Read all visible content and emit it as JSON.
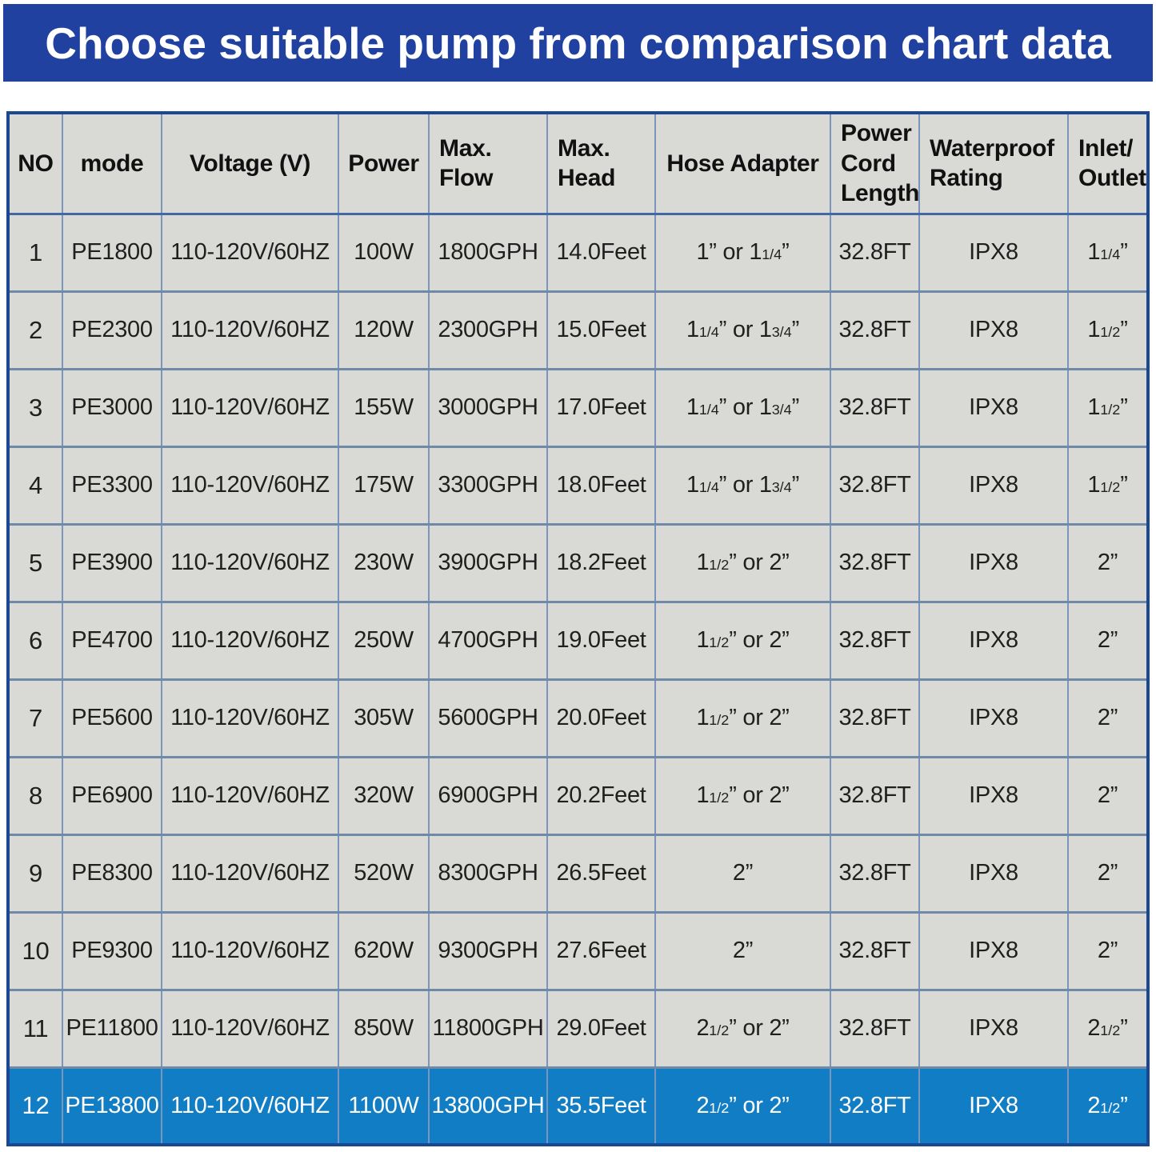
{
  "banner": {
    "title": "Choose suitable pump from comparison chart data",
    "bg_color": "#2041a0",
    "text_color": "#ffffff"
  },
  "table": {
    "columns": [
      {
        "key": "no",
        "label": "NO"
      },
      {
        "key": "mode",
        "label": "mode"
      },
      {
        "key": "voltage",
        "label": "Voltage (V)"
      },
      {
        "key": "power",
        "label": "Power"
      },
      {
        "key": "max_flow",
        "label": "Max.\nFlow"
      },
      {
        "key": "max_head",
        "label": "Max.\nHead"
      },
      {
        "key": "hose",
        "label": "Hose Adapter"
      },
      {
        "key": "cord",
        "label": "Power\nCord\nLength"
      },
      {
        "key": "waterproof",
        "label": "Waterproof\nRating"
      },
      {
        "key": "inlet",
        "label": "Inlet/\nOutlet"
      }
    ],
    "rows": [
      {
        "no": "1",
        "mode": "PE1800",
        "voltage": "110-120V/60HZ",
        "power": "100W",
        "max_flow": "1800GPH",
        "max_head": "14.0Feet",
        "hose": "1” or 1{1/4}”",
        "cord": "32.8FT",
        "waterproof": "IPX8",
        "inlet": "1{1/4}”",
        "highlighted": false
      },
      {
        "no": "2",
        "mode": "PE2300",
        "voltage": "110-120V/60HZ",
        "power": "120W",
        "max_flow": "2300GPH",
        "max_head": "15.0Feet",
        "hose": "1{1/4}” or 1{3/4}”",
        "cord": "32.8FT",
        "waterproof": "IPX8",
        "inlet": "1{1/2}”",
        "highlighted": false
      },
      {
        "no": "3",
        "mode": "PE3000",
        "voltage": "110-120V/60HZ",
        "power": "155W",
        "max_flow": "3000GPH",
        "max_head": "17.0Feet",
        "hose": "1{1/4}” or 1{3/4}”",
        "cord": "32.8FT",
        "waterproof": "IPX8",
        "inlet": "1{1/2}”",
        "highlighted": false
      },
      {
        "no": "4",
        "mode": "PE3300",
        "voltage": "110-120V/60HZ",
        "power": "175W",
        "max_flow": "3300GPH",
        "max_head": "18.0Feet",
        "hose": "1{1/4}” or 1{3/4}”",
        "cord": "32.8FT",
        "waterproof": "IPX8",
        "inlet": "1{1/2}”",
        "highlighted": false
      },
      {
        "no": "5",
        "mode": "PE3900",
        "voltage": "110-120V/60HZ",
        "power": "230W",
        "max_flow": "3900GPH",
        "max_head": "18.2Feet",
        "hose": "1{1/2}” or 2”",
        "cord": "32.8FT",
        "waterproof": "IPX8",
        "inlet": "2”",
        "highlighted": false
      },
      {
        "no": "6",
        "mode": "PE4700",
        "voltage": "110-120V/60HZ",
        "power": "250W",
        "max_flow": "4700GPH",
        "max_head": "19.0Feet",
        "hose": "1{1/2}” or 2”",
        "cord": "32.8FT",
        "waterproof": "IPX8",
        "inlet": "2”",
        "highlighted": false
      },
      {
        "no": "7",
        "mode": "PE5600",
        "voltage": "110-120V/60HZ",
        "power": "305W",
        "max_flow": "5600GPH",
        "max_head": "20.0Feet",
        "hose": "1{1/2}” or 2”",
        "cord": "32.8FT",
        "waterproof": "IPX8",
        "inlet": "2”",
        "highlighted": false
      },
      {
        "no": "8",
        "mode": "PE6900",
        "voltage": "110-120V/60HZ",
        "power": "320W",
        "max_flow": "6900GPH",
        "max_head": "20.2Feet",
        "hose": "1{1/2}” or 2”",
        "cord": "32.8FT",
        "waterproof": "IPX8",
        "inlet": "2”",
        "highlighted": false
      },
      {
        "no": "9",
        "mode": "PE8300",
        "voltage": "110-120V/60HZ",
        "power": "520W",
        "max_flow": "8300GPH",
        "max_head": "26.5Feet",
        "hose": "2”",
        "cord": "32.8FT",
        "waterproof": "IPX8",
        "inlet": "2”",
        "highlighted": false
      },
      {
        "no": "10",
        "mode": "PE9300",
        "voltage": "110-120V/60HZ",
        "power": "620W",
        "max_flow": "9300GPH",
        "max_head": "27.6Feet",
        "hose": "2”",
        "cord": "32.8FT",
        "waterproof": "IPX8",
        "inlet": "2”",
        "highlighted": false
      },
      {
        "no": "11",
        "mode": "PE11800",
        "voltage": "110-120V/60HZ",
        "power": "850W",
        "max_flow": "11800GPH",
        "max_head": "29.0Feet",
        "hose": "2{1/2}” or 2”",
        "cord": "32.8FT",
        "waterproof": "IPX8",
        "inlet": "2{1/2}”",
        "highlighted": false
      },
      {
        "no": "12",
        "mode": "PE13800",
        "voltage": "110-120V/60HZ",
        "power": "1100W",
        "max_flow": "13800GPH",
        "max_head": "35.5Feet",
        "hose": "2{1/2}” or 2”",
        "cord": "32.8FT",
        "waterproof": "IPX8",
        "inlet": "2{1/2}”",
        "highlighted": true
      }
    ],
    "colors": {
      "cell_bg": "#d9d9d6",
      "highlight_bg": "#117dc4",
      "highlight_text": "#ffffff",
      "outer_border": "#1c4793",
      "grid_line": "#7b96bd"
    }
  }
}
